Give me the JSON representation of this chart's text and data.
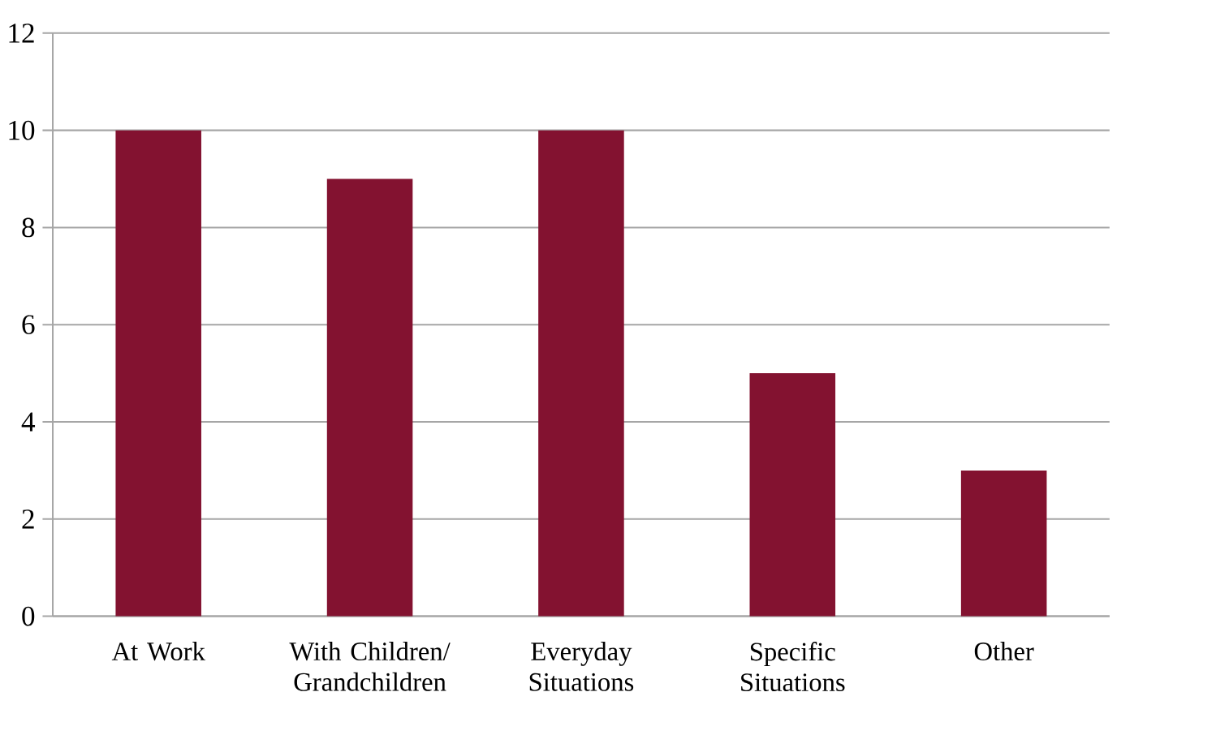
{
  "chart_data": {
    "type": "bar",
    "categories": [
      "At Work",
      "With Children/ Grandchildren",
      "Everyday Situations",
      "Specific Situations",
      "Other"
    ],
    "values": [
      10,
      9,
      10,
      5,
      3
    ],
    "color": "#831230",
    "ylim": [
      0,
      12
    ],
    "yticks": [
      0,
      2,
      4,
      6,
      8,
      10,
      12
    ],
    "grid": "y"
  }
}
